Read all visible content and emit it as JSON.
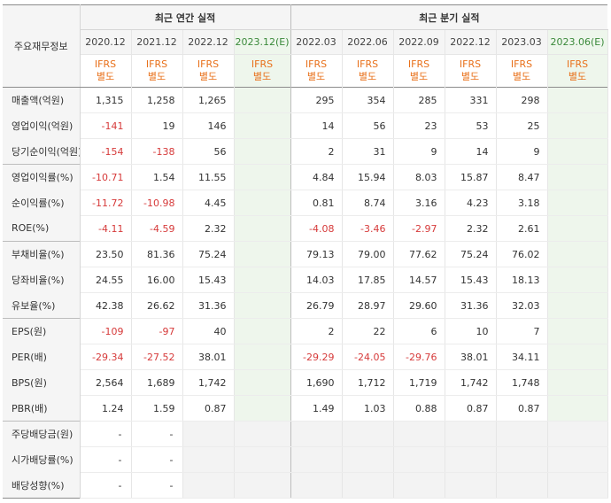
{
  "header": {
    "row_label": "주요재무정보",
    "annual_title": "최근 연간 실적",
    "quarter_title": "최근 분기 실적",
    "annual_periods": [
      "2020.12",
      "2021.12",
      "2022.12",
      "2023.12(E)"
    ],
    "quarter_periods": [
      "2022.03",
      "2022.06",
      "2022.09",
      "2022.12",
      "2023.03",
      "2023.06(E)"
    ],
    "standard_top": "IFRS",
    "standard_bottom": "별도"
  },
  "rows": [
    {
      "label": "매출액(억원)",
      "annual": [
        "1,315",
        "1,258",
        "1,265",
        ""
      ],
      "quarter": [
        "295",
        "354",
        "285",
        "331",
        "298",
        ""
      ]
    },
    {
      "label": "영업이익(억원)",
      "annual": [
        "-141",
        "19",
        "146",
        ""
      ],
      "quarter": [
        "14",
        "56",
        "23",
        "53",
        "25",
        ""
      ]
    },
    {
      "label": "당기순이익(억원)",
      "annual": [
        "-154",
        "-138",
        "56",
        ""
      ],
      "quarter": [
        "2",
        "31",
        "9",
        "14",
        "9",
        ""
      ]
    },
    {
      "label": "영업이익률(%)",
      "annual": [
        "-10.71",
        "1.54",
        "11.55",
        ""
      ],
      "quarter": [
        "4.84",
        "15.94",
        "8.03",
        "15.87",
        "8.47",
        ""
      ]
    },
    {
      "label": "순이익률(%)",
      "annual": [
        "-11.72",
        "-10.98",
        "4.45",
        ""
      ],
      "quarter": [
        "0.81",
        "8.74",
        "3.16",
        "4.23",
        "3.18",
        ""
      ]
    },
    {
      "label": "ROE(%)",
      "annual": [
        "-4.11",
        "-4.59",
        "2.32",
        ""
      ],
      "quarter": [
        "-4.08",
        "-3.46",
        "-2.97",
        "2.32",
        "2.61",
        ""
      ]
    },
    {
      "label": "부채비율(%)",
      "annual": [
        "23.50",
        "81.36",
        "75.24",
        ""
      ],
      "quarter": [
        "79.13",
        "79.00",
        "77.62",
        "75.24",
        "76.02",
        ""
      ]
    },
    {
      "label": "당좌비율(%)",
      "annual": [
        "24.55",
        "16.00",
        "15.43",
        ""
      ],
      "quarter": [
        "14.03",
        "17.85",
        "14.57",
        "15.43",
        "18.13",
        ""
      ]
    },
    {
      "label": "유보율(%)",
      "annual": [
        "42.38",
        "26.62",
        "31.36",
        ""
      ],
      "quarter": [
        "26.79",
        "28.97",
        "29.60",
        "31.36",
        "32.03",
        ""
      ]
    },
    {
      "label": "EPS(원)",
      "annual": [
        "-109",
        "-97",
        "40",
        ""
      ],
      "quarter": [
        "2",
        "22",
        "6",
        "10",
        "7",
        ""
      ]
    },
    {
      "label": "PER(배)",
      "annual": [
        "-29.34",
        "-27.52",
        "38.01",
        ""
      ],
      "quarter": [
        "-29.29",
        "-24.05",
        "-29.76",
        "38.01",
        "34.11",
        ""
      ]
    },
    {
      "label": "BPS(원)",
      "annual": [
        "2,564",
        "1,689",
        "1,742",
        ""
      ],
      "quarter": [
        "1,690",
        "1,712",
        "1,719",
        "1,742",
        "1,748",
        ""
      ]
    },
    {
      "label": "PBR(배)",
      "annual": [
        "1.24",
        "1.59",
        "0.87",
        ""
      ],
      "quarter": [
        "1.49",
        "1.03",
        "0.88",
        "0.87",
        "0.87",
        ""
      ]
    },
    {
      "label": "주당배당금(원)",
      "annual": [
        "-",
        "-",
        "",
        ""
      ],
      "quarter": [
        "",
        "",
        "",
        "",
        "",
        ""
      ]
    },
    {
      "label": "시가배당률(%)",
      "annual": [
        "-",
        "-",
        "",
        ""
      ],
      "quarter": [
        "",
        "",
        "",
        "",
        "",
        ""
      ]
    },
    {
      "label": "배당성향(%)",
      "annual": [
        "-",
        "-",
        "",
        ""
      ],
      "quarter": [
        "",
        "",
        "",
        "",
        "",
        ""
      ]
    }
  ],
  "colors": {
    "negative": "#d63a3a",
    "standard": "#e8701a",
    "estimate_bg": "#eef6ec",
    "header_bg": "#f5f5f5"
  }
}
